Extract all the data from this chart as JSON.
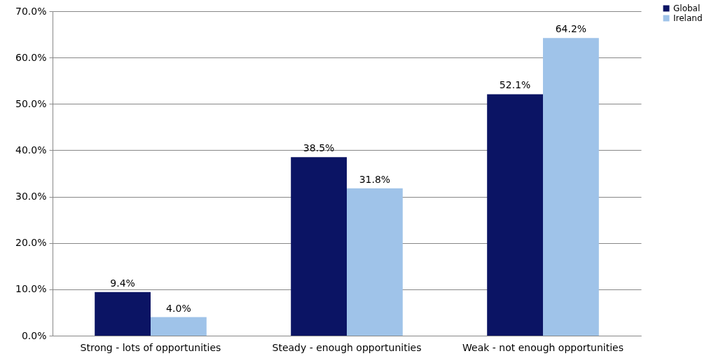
{
  "chart_data": {
    "type": "bar",
    "categories": [
      "Strong - lots of opportunities",
      "Steady - enough opportunities",
      "Weak - not enough opportunities"
    ],
    "series": [
      {
        "name": "Global",
        "color": "#0b1464",
        "values": [
          9.4,
          38.5,
          52.1
        ],
        "value_labels": [
          "9.4%",
          "38.5%",
          "52.1%"
        ]
      },
      {
        "name": "Ireland",
        "color": "#9fc3e9",
        "values": [
          4.0,
          31.8,
          64.2
        ],
        "value_labels": [
          "4.0%",
          "31.8%",
          "64.2%"
        ]
      }
    ],
    "ylim": [
      0,
      70
    ],
    "yticks": [
      {
        "value": 0,
        "label": "0.0%"
      },
      {
        "value": 10,
        "label": "10.0%"
      },
      {
        "value": 20,
        "label": "20.0%"
      },
      {
        "value": 30,
        "label": "30.0%"
      },
      {
        "value": 40,
        "label": "40.0%"
      },
      {
        "value": 50,
        "label": "50.0%"
      },
      {
        "value": 60,
        "label": "60.0%"
      },
      {
        "value": 70,
        "label": "70.0%"
      }
    ],
    "grid": "y",
    "legend": "top right"
  }
}
